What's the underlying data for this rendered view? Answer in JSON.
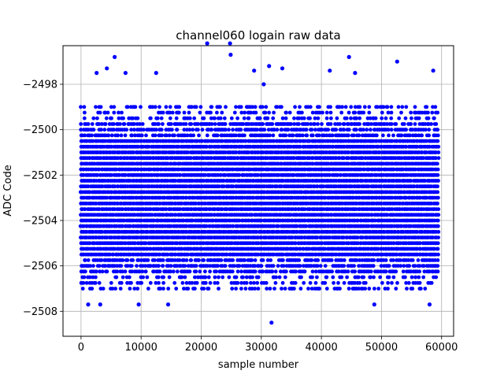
{
  "chart_data": {
    "type": "scatter",
    "title": "channel060 logain raw data",
    "xlabel": "sample number",
    "ylabel": "ADC Code",
    "xlim": [
      -3000,
      62000
    ],
    "ylim": [
      -2509.1,
      -2496.3
    ],
    "xticks": [
      0,
      10000,
      20000,
      30000,
      40000,
      50000,
      60000
    ],
    "xtick_labels": [
      "0",
      "10000",
      "20000",
      "30000",
      "40000",
      "50000",
      "60000"
    ],
    "yticks": [
      -2508,
      -2506,
      -2504,
      -2502,
      -2500,
      -2498
    ],
    "ytick_labels": [
      "−2508",
      "−2506",
      "−2504",
      "−2502",
      "−2500",
      "−2498"
    ],
    "grid": true,
    "marker_color": "#0000ff",
    "series": [
      {
        "x_range": [
          0,
          59400
        ],
        "dense_band": [
          -2507.0,
          -2499.0
        ],
        "outliers": [
          {
            "x": 1200,
            "y": -2507.7
          },
          {
            "x": 2600,
            "y": -2497.5
          },
          {
            "x": 3200,
            "y": -2507.7
          },
          {
            "x": 4300,
            "y": -2497.3
          },
          {
            "x": 5600,
            "y": -2496.8
          },
          {
            "x": 7400,
            "y": -2497.5
          },
          {
            "x": 9600,
            "y": -2507.7
          },
          {
            "x": 12500,
            "y": -2497.5
          },
          {
            "x": 14500,
            "y": -2507.7
          },
          {
            "x": 21000,
            "y": -2496.2
          },
          {
            "x": 24800,
            "y": -2496.2
          },
          {
            "x": 24900,
            "y": -2496.7
          },
          {
            "x": 28800,
            "y": -2497.4
          },
          {
            "x": 30400,
            "y": -2498.0
          },
          {
            "x": 31300,
            "y": -2497.2
          },
          {
            "x": 31700,
            "y": -2508.5
          },
          {
            "x": 33500,
            "y": -2497.3
          },
          {
            "x": 41400,
            "y": -2497.4
          },
          {
            "x": 44600,
            "y": -2496.8
          },
          {
            "x": 45600,
            "y": -2497.5
          },
          {
            "x": 48800,
            "y": -2507.7
          },
          {
            "x": 52600,
            "y": -2497.0
          },
          {
            "x": 58000,
            "y": -2507.7
          },
          {
            "x": 58600,
            "y": -2497.4
          }
        ]
      }
    ]
  }
}
